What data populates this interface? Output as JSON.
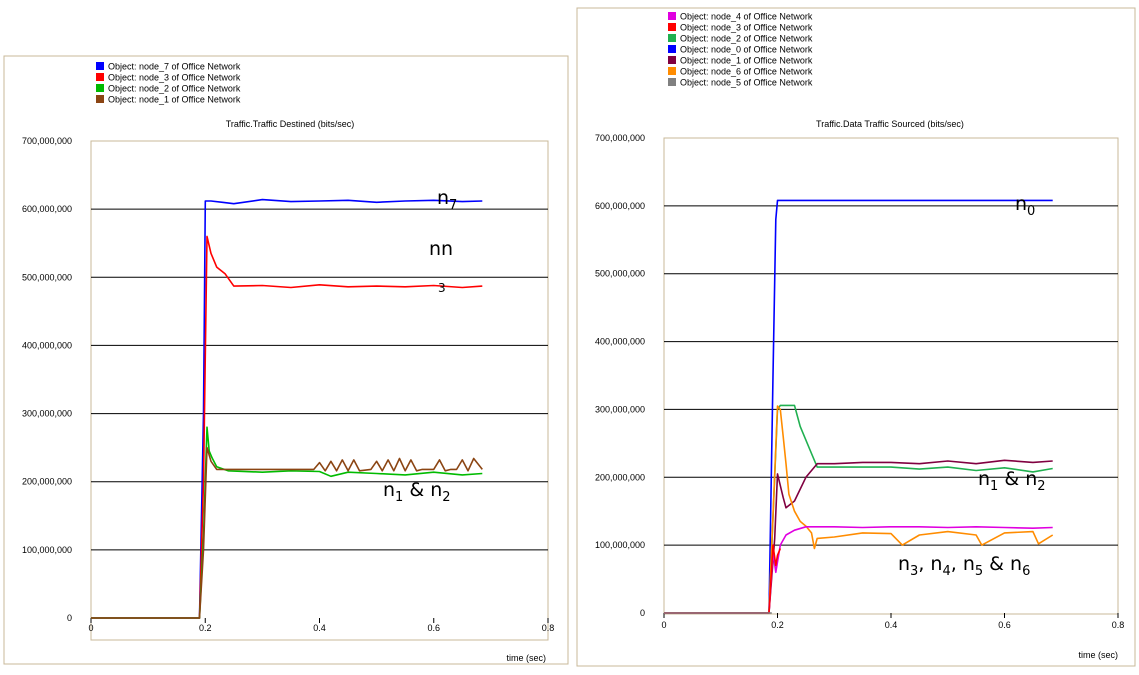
{
  "charts": [
    {
      "legend": [
        {
          "label": "Object: node_7 of Office Network",
          "color": "#0000ff"
        },
        {
          "label": "Object: node_3 of Office Network",
          "color": "#ff0000"
        },
        {
          "label": "Object: node_2 of Office Network",
          "color": "#00bb00"
        },
        {
          "label": "Object: node_1 of Office Network",
          "color": "#8b4513"
        }
      ],
      "annotations": [
        "n7",
        "nn",
        "3",
        "n1 & n2"
      ]
    },
    {
      "legend": [
        {
          "label": "Object: node_4 of Office Network",
          "color": "#e000e0"
        },
        {
          "label": "Object: node_3 of Office Network",
          "color": "#ff0000"
        },
        {
          "label": "Object: node_2 of Office Network",
          "color": "#20b050"
        },
        {
          "label": "Object: node_0 of Office Network",
          "color": "#0000ff"
        },
        {
          "label": "Object: node_1 of Office Network",
          "color": "#800040"
        },
        {
          "label": "Object: node_6 of Office Network",
          "color": "#ff8c00"
        },
        {
          "label": "Object: node_5 of Office Network",
          "color": "#808080"
        }
      ],
      "annotations": [
        "n0",
        "n1 & n2",
        "n3, n4, n5 & n6"
      ]
    }
  ],
  "chart_data": [
    {
      "type": "line",
      "title": "Traffic.Traffic Destined (bits/sec)",
      "xlabel": "time (sec)",
      "ylabel": "",
      "xlim": [
        0,
        0.8
      ],
      "ylim": [
        0,
        700000000
      ],
      "x_ticks": [
        "0",
        "0.2",
        "0.4",
        "0.6",
        "0.8"
      ],
      "y_ticks": [
        "0",
        "100,000,000",
        "200,000,000",
        "300,000,000",
        "400,000,000",
        "500,000,000",
        "600,000,000",
        "700,000,000"
      ],
      "grid": "horizontal",
      "legend_position": "top",
      "series": [
        {
          "name": "Object: node_7 of Office Network",
          "color": "#0000ff",
          "x": [
            0,
            0.19,
            0.197,
            0.2,
            0.21,
            0.23,
            0.25,
            0.3,
            0.35,
            0.4,
            0.45,
            0.5,
            0.55,
            0.6,
            0.65,
            0.685
          ],
          "y": [
            0,
            0,
            300000000,
            612000000,
            612000000,
            610000000,
            608000000,
            614000000,
            611000000,
            612000000,
            613000000,
            610000000,
            612000000,
            613000000,
            611000000,
            612000000
          ]
        },
        {
          "name": "Object: node_3 of Office Network",
          "color": "#ff0000",
          "x": [
            0,
            0.19,
            0.197,
            0.203,
            0.21,
            0.22,
            0.235,
            0.25,
            0.3,
            0.35,
            0.4,
            0.45,
            0.5,
            0.55,
            0.6,
            0.65,
            0.685
          ],
          "y": [
            0,
            0,
            200000000,
            560000000,
            535000000,
            515000000,
            505000000,
            487000000,
            488000000,
            485000000,
            489000000,
            486000000,
            487000000,
            486000000,
            488000000,
            485000000,
            487000000
          ]
        },
        {
          "name": "Object: node_2 of Office Network",
          "color": "#00bb00",
          "x": [
            0,
            0.19,
            0.197,
            0.203,
            0.207,
            0.212,
            0.22,
            0.24,
            0.3,
            0.35,
            0.4,
            0.42,
            0.45,
            0.5,
            0.55,
            0.6,
            0.65,
            0.685
          ],
          "y": [
            0,
            0,
            120000000,
            280000000,
            245000000,
            235000000,
            222000000,
            216000000,
            214000000,
            216000000,
            215000000,
            208000000,
            214000000,
            212000000,
            210000000,
            214000000,
            210000000,
            212000000
          ]
        },
        {
          "name": "Object: node_1 of Office Network",
          "color": "#8b4513",
          "x": [
            0,
            0.19,
            0.197,
            0.203,
            0.21,
            0.22,
            0.3,
            0.39,
            0.4,
            0.41,
            0.42,
            0.43,
            0.44,
            0.45,
            0.46,
            0.47,
            0.49,
            0.5,
            0.51,
            0.52,
            0.53,
            0.54,
            0.55,
            0.56,
            0.57,
            0.58,
            0.6,
            0.61,
            0.62,
            0.63,
            0.64,
            0.65,
            0.66,
            0.67,
            0.685
          ],
          "y": [
            0,
            0,
            100000000,
            250000000,
            230000000,
            218000000,
            218000000,
            218000000,
            228000000,
            216000000,
            230000000,
            216000000,
            232000000,
            216000000,
            232000000,
            216000000,
            218000000,
            230000000,
            216000000,
            232000000,
            216000000,
            234000000,
            216000000,
            232000000,
            216000000,
            218000000,
            218000000,
            232000000,
            216000000,
            218000000,
            218000000,
            232000000,
            216000000,
            234000000,
            218000000
          ]
        }
      ]
    },
    {
      "type": "line",
      "title": "Traffic.Data Traffic Sourced (bits/sec)",
      "xlabel": "time (sec)",
      "ylabel": "",
      "xlim": [
        0,
        0.8
      ],
      "ylim": [
        0,
        700000000
      ],
      "x_ticks": [
        "0",
        "0.2",
        "0.4",
        "0.6",
        "0.8"
      ],
      "y_ticks": [
        "0",
        "100,000,000",
        "200,000,000",
        "300,000,000",
        "400,000,000",
        "500,000,000",
        "600,000,000",
        "700,000,000"
      ],
      "grid": "horizontal",
      "legend_position": "top",
      "series": [
        {
          "name": "Object: node_0 of Office Network",
          "color": "#0000ff",
          "x": [
            0,
            0.185,
            0.192,
            0.197,
            0.2,
            0.3,
            0.4,
            0.5,
            0.6,
            0.685
          ],
          "y": [
            0,
            0,
            350000000,
            580000000,
            608000000,
            608000000,
            608000000,
            608000000,
            608000000,
            608000000
          ]
        },
        {
          "name": "Object: node_2 of Office Network",
          "color": "#20b050",
          "x": [
            0,
            0.185,
            0.2,
            0.205,
            0.23,
            0.24,
            0.26,
            0.27,
            0.3,
            0.4,
            0.45,
            0.5,
            0.55,
            0.6,
            0.65,
            0.685
          ],
          "y": [
            0,
            0,
            300000000,
            306000000,
            306000000,
            275000000,
            235000000,
            215000000,
            215000000,
            215000000,
            212000000,
            215000000,
            210000000,
            214000000,
            208000000,
            213000000
          ]
        },
        {
          "name": "Object: node_1 of Office Network",
          "color": "#800040",
          "x": [
            0,
            0.185,
            0.195,
            0.2,
            0.21,
            0.215,
            0.23,
            0.25,
            0.27,
            0.3,
            0.35,
            0.4,
            0.45,
            0.5,
            0.55,
            0.6,
            0.65,
            0.685
          ],
          "y": [
            0,
            0,
            110000000,
            205000000,
            170000000,
            155000000,
            165000000,
            200000000,
            220000000,
            220000000,
            222000000,
            222000000,
            220000000,
            224000000,
            220000000,
            225000000,
            222000000,
            224000000
          ]
        },
        {
          "name": "Object: node_6 of Office Network",
          "color": "#ff8c00",
          "x": [
            0,
            0.185,
            0.2,
            0.205,
            0.21,
            0.215,
            0.22,
            0.23,
            0.24,
            0.25,
            0.26,
            0.265,
            0.27,
            0.3,
            0.35,
            0.4,
            0.42,
            0.45,
            0.5,
            0.55,
            0.56,
            0.6,
            0.65,
            0.66,
            0.685
          ],
          "y": [
            0,
            0,
            305000000,
            300000000,
            260000000,
            220000000,
            175000000,
            150000000,
            135000000,
            128000000,
            118000000,
            95000000,
            110000000,
            112000000,
            118000000,
            117000000,
            100000000,
            115000000,
            120000000,
            115000000,
            100000000,
            118000000,
            120000000,
            102000000,
            115000000
          ]
        },
        {
          "name": "Object: node_4 of Office Network",
          "color": "#e000e0",
          "x": [
            0,
            0.185,
            0.192,
            0.197,
            0.205,
            0.215,
            0.23,
            0.25,
            0.3,
            0.35,
            0.4,
            0.45,
            0.5,
            0.55,
            0.6,
            0.65,
            0.685
          ],
          "y": [
            0,
            0,
            90000000,
            60000000,
            100000000,
            115000000,
            122000000,
            127000000,
            127000000,
            126000000,
            127000000,
            127000000,
            126000000,
            127000000,
            126000000,
            125000000,
            126000000
          ]
        },
        {
          "name": "Object: node_3 of Office Network",
          "color": "#ff0000",
          "x": [
            0,
            0.185,
            0.192,
            0.197,
            0.2,
            0.205
          ],
          "y": [
            0,
            0,
            100000000,
            70000000,
            85000000,
            95000000
          ]
        },
        {
          "name": "Object: node_5 of Office Network",
          "color": "#808080",
          "x": [
            0,
            0.185,
            0.19
          ],
          "y": [
            0,
            0,
            0
          ]
        }
      ]
    }
  ]
}
